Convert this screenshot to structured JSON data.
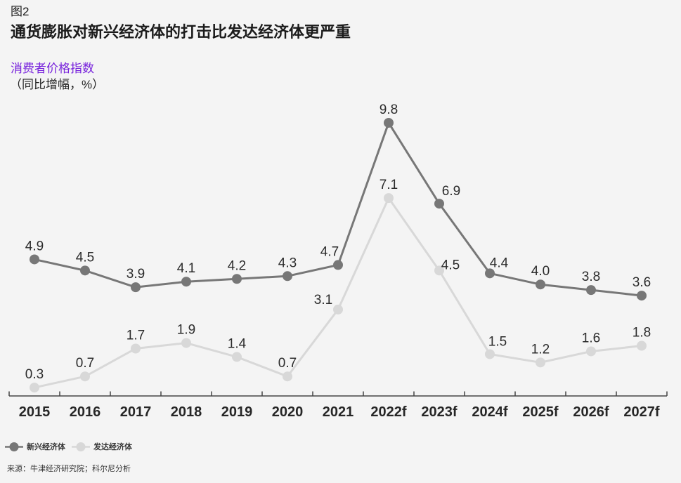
{
  "figure": {
    "label": "图2",
    "title": "通货膨胀对新兴经济体的打击比发达经济体更严重",
    "subtitle": "消费者价格指数",
    "unit": "（同比增幅，%）",
    "source": "来源：牛津经济研究院；科尔尼分析"
  },
  "colors": {
    "background": "#f4f4f4",
    "title_text": "#1b1b1b",
    "text": "#262626",
    "accent_purple": "#7823dc",
    "axis": "#444444",
    "emerging": "#777777",
    "developed": "#d8d8d8",
    "label_text": "#2b2b2b",
    "small_text": "#333333"
  },
  "chart_data": {
    "type": "line",
    "title": "消费者价格指数",
    "subtitle_unit": "（同比增幅，%）",
    "xlabel": "",
    "ylabel": "",
    "ylim": [
      0,
      10.5
    ],
    "grid": false,
    "data_labels": true,
    "legend_position": "bottom-left",
    "categories": [
      "2015",
      "2016",
      "2017",
      "2018",
      "2019",
      "2020",
      "2021",
      "2022f",
      "2023f",
      "2024f",
      "2025f",
      "2026f",
      "2027f"
    ],
    "series": [
      {
        "name": "新兴经济体",
        "key": "emerging",
        "values": [
          4.9,
          4.5,
          3.9,
          4.1,
          4.2,
          4.3,
          4.7,
          9.8,
          6.9,
          4.4,
          4.0,
          3.8,
          3.6
        ]
      },
      {
        "name": "发达经济体",
        "key": "developed",
        "values": [
          0.3,
          0.7,
          1.7,
          1.9,
          1.4,
          0.7,
          3.1,
          7.1,
          4.5,
          1.5,
          1.2,
          1.6,
          1.8
        ]
      }
    ],
    "label_offsets": {
      "emerging": {
        "6": [
          -12,
          0
        ],
        "8": [
          17,
          1
        ],
        "9": [
          13,
          4
        ]
      },
      "developed": {
        "6": [
          -21,
          5
        ],
        "8": [
          16,
          11
        ],
        "9": [
          11,
          1
        ]
      }
    }
  },
  "legend": {
    "items": [
      {
        "label": "新兴经济体",
        "key": "emerging"
      },
      {
        "label": "发达经济体",
        "key": "developed"
      }
    ]
  }
}
